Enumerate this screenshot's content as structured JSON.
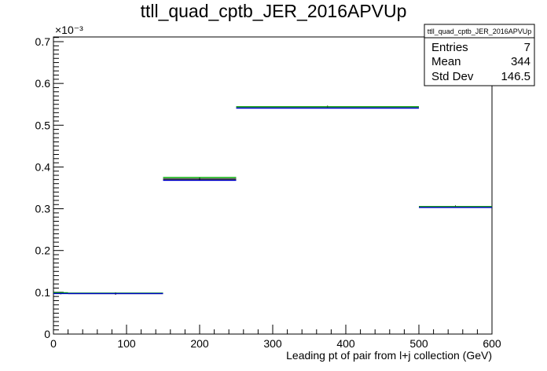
{
  "chart_data": {
    "type": "histogram",
    "title": "ttll_quad_cptb_JER_2016APVUp",
    "xlabel": "Leading pt of pair from l+j collection (GeV)",
    "ylabel": "",
    "y_exponent_label": "×10⁻³",
    "xlim": [
      0,
      600
    ],
    "ylim": [
      0,
      0.72
    ],
    "x_ticks": [
      0,
      100,
      200,
      300,
      400,
      500,
      600
    ],
    "y_ticks": [
      0,
      0.1,
      0.2,
      0.3,
      0.4,
      0.5,
      0.6,
      0.7
    ],
    "x_tick_labels": [
      "0",
      "100",
      "200",
      "300",
      "400",
      "500",
      "600"
    ],
    "y_tick_labels": [
      "0",
      "0.1",
      "0.2",
      "0.3",
      "0.4",
      "0.5",
      "0.6",
      "0.7"
    ],
    "bin_edges": [
      0,
      20,
      150,
      250,
      500,
      600
    ],
    "series": [
      {
        "color": "#000000",
        "values": [
          0.098,
          0.097,
          0.371,
          0.544,
          0.305
        ]
      },
      {
        "color": "#00aa00",
        "values": [
          0.099,
          0.098,
          0.375,
          0.544,
          0.305
        ]
      },
      {
        "color": "#0000cc",
        "values": [
          0.097,
          0.097,
          0.368,
          0.541,
          0.303
        ]
      }
    ],
    "grid": false,
    "legend": "none"
  },
  "stats_box": {
    "title": "ttll_quad_cptb_JER_2016APVUp",
    "rows": [
      {
        "label": "Entries",
        "value": "7"
      },
      {
        "label": "Mean",
        "value": "344"
      },
      {
        "label": "Std Dev",
        "value": "146.5"
      }
    ]
  }
}
